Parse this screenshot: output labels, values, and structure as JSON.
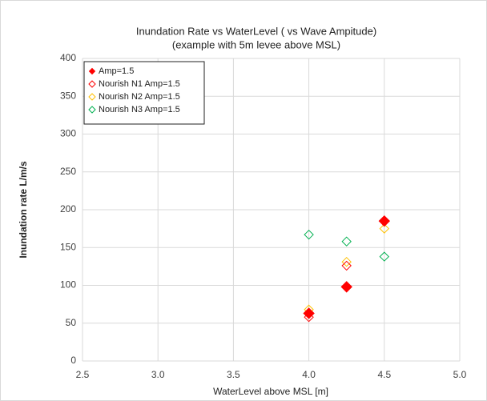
{
  "chart_data": {
    "type": "scatter",
    "title": [
      "Inundation Rate vs WaterLevel ( vs Wave Ampitude)",
      "(example with 5m levee above MSL)"
    ],
    "xlabel": "WaterLevel above MSL  [m]",
    "ylabel": "Inundation rate L/m/s",
    "xlim": [
      2.5,
      5.0
    ],
    "xticks": [
      {
        "value": 2.5,
        "label": "2.5"
      },
      {
        "value": 3.0,
        "label": "3.0"
      },
      {
        "value": 3.5,
        "label": "3.5"
      },
      {
        "value": 4.0,
        "label": "4.0"
      },
      {
        "value": 4.5,
        "label": "4.5"
      },
      {
        "value": 5.0,
        "label": "5.0"
      }
    ],
    "ylim": [
      0,
      400
    ],
    "yticks": [
      0,
      50,
      100,
      150,
      200,
      250,
      300,
      350,
      400
    ],
    "grid": true,
    "legend": "upper left",
    "series": [
      {
        "name": "Amp=1.5",
        "color": "#ff0000",
        "marker": "filled",
        "x": [
          4.0,
          4.25,
          4.5
        ],
        "values": [
          63,
          98,
          185
        ]
      },
      {
        "name": "Nourish N1  Amp=1.5",
        "color": "#ff0000",
        "marker": "open",
        "x": [
          4.0,
          4.25,
          4.5
        ],
        "values": [
          58,
          126,
          185
        ]
      },
      {
        "name": "Nourish N2 Amp=1.5",
        "color": "#ffc000",
        "marker": "open",
        "x": [
          4.0,
          4.25,
          4.5
        ],
        "values": [
          68,
          131,
          175
        ]
      },
      {
        "name": "Nourish N3 Amp=1.5",
        "color": "#00b050",
        "marker": "open",
        "x": [
          4.0,
          4.25,
          4.5
        ],
        "values": [
          167,
          158,
          138
        ]
      }
    ]
  }
}
